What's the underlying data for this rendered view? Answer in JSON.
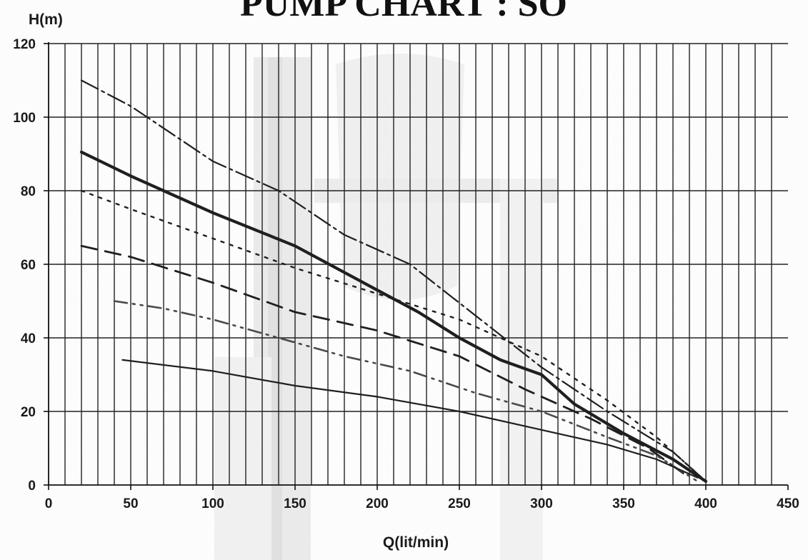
{
  "title": "PUMP CHART : SO",
  "chart_data": {
    "type": "line",
    "title": "PUMP CHART : SO",
    "xlabel": "Q(lit/min)",
    "ylabel": "H(m)",
    "xlim": [
      0,
      450
    ],
    "ylim": [
      0,
      120
    ],
    "x_ticks": [
      0,
      50,
      100,
      150,
      200,
      250,
      300,
      350,
      400,
      450
    ],
    "y_ticks": [
      0,
      20,
      40,
      60,
      80,
      100,
      120
    ],
    "minor_x_step": 10,
    "grid": true,
    "series": [
      {
        "style": "dash-dot-long",
        "color": "#1f1f1f",
        "points": [
          [
            20,
            110
          ],
          [
            50,
            103
          ],
          [
            80,
            94
          ],
          [
            100,
            88
          ],
          [
            140,
            80
          ],
          [
            180,
            68
          ],
          [
            220,
            60
          ],
          [
            260,
            46
          ],
          [
            300,
            32
          ],
          [
            340,
            20
          ],
          [
            380,
            9
          ],
          [
            400,
            1
          ]
        ]
      },
      {
        "style": "solid-thick",
        "color": "#1f1f1f",
        "points": [
          [
            20,
            90.5
          ],
          [
            50,
            84
          ],
          [
            100,
            74
          ],
          [
            150,
            65
          ],
          [
            200,
            53
          ],
          [
            225,
            47
          ],
          [
            250,
            40
          ],
          [
            275,
            34
          ],
          [
            300,
            30
          ],
          [
            320,
            22
          ],
          [
            350,
            14
          ],
          [
            380,
            7
          ],
          [
            400,
            1
          ]
        ]
      },
      {
        "style": "dotted",
        "color": "#1f1f1f",
        "points": [
          [
            20,
            80
          ],
          [
            50,
            75
          ],
          [
            100,
            67
          ],
          [
            150,
            59
          ],
          [
            200,
            52
          ],
          [
            250,
            45
          ],
          [
            300,
            35
          ],
          [
            340,
            23
          ],
          [
            370,
            13
          ],
          [
            400,
            1
          ]
        ]
      },
      {
        "style": "long-dash",
        "color": "#1f1f1f",
        "points": [
          [
            20,
            65
          ],
          [
            50,
            62
          ],
          [
            100,
            55
          ],
          [
            150,
            47
          ],
          [
            200,
            42
          ],
          [
            250,
            35
          ],
          [
            290,
            26
          ],
          [
            330,
            18
          ],
          [
            365,
            10
          ],
          [
            390,
            2
          ]
        ]
      },
      {
        "style": "dash-dot-dot",
        "color": "#4a4a4a",
        "points": [
          [
            40,
            50
          ],
          [
            70,
            48
          ],
          [
            100,
            45
          ],
          [
            140,
            40
          ],
          [
            180,
            35
          ],
          [
            220,
            31
          ],
          [
            260,
            25
          ],
          [
            300,
            20
          ],
          [
            340,
            13
          ],
          [
            370,
            8
          ],
          [
            395,
            1
          ]
        ]
      },
      {
        "style": "solid-thin",
        "color": "#1f1f1f",
        "points": [
          [
            45,
            34
          ],
          [
            100,
            31
          ],
          [
            150,
            27
          ],
          [
            200,
            24
          ],
          [
            250,
            20
          ],
          [
            300,
            15
          ],
          [
            340,
            11
          ],
          [
            370,
            7
          ],
          [
            395,
            2
          ]
        ]
      }
    ]
  }
}
